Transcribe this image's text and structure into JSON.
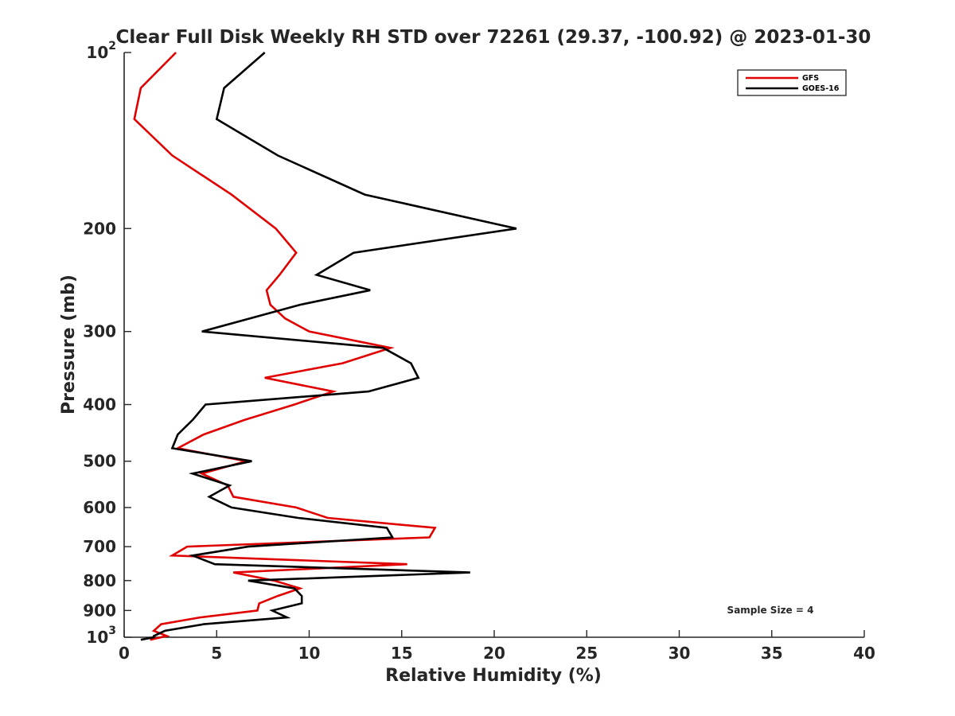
{
  "chart_data": {
    "type": "line",
    "title": "Clear Full Disk Weekly RH STD over 72261 (29.37, -100.92) @ 2023-01-30",
    "xlabel": "Relative Humidity (%)",
    "ylabel": "Pressure (mb)",
    "xlim": [
      0,
      40
    ],
    "ylim": [
      100,
      1000
    ],
    "y_scale": "log",
    "y_reversed": true,
    "xticks": [
      0,
      5,
      10,
      15,
      20,
      25,
      30,
      35,
      40
    ],
    "yticks": [
      {
        "value": 100,
        "base": "10",
        "exp": "2"
      },
      {
        "value": 200,
        "label": "200"
      },
      {
        "value": 300,
        "label": "300"
      },
      {
        "value": 400,
        "label": "400"
      },
      {
        "value": 500,
        "label": "500"
      },
      {
        "value": 600,
        "label": "600"
      },
      {
        "value": 700,
        "label": "700"
      },
      {
        "value": 800,
        "label": "800"
      },
      {
        "value": 900,
        "label": "900"
      },
      {
        "value": 1000,
        "base": "10",
        "exp": "3"
      }
    ],
    "grid": false,
    "legend_position": "top-right",
    "annotation": "Sample Size = 4",
    "series": [
      {
        "name": "GFS",
        "color": "#e00000",
        "points": [
          [
            2.8,
            100
          ],
          [
            0.9,
            115
          ],
          [
            0.55,
            130
          ],
          [
            2.6,
            150
          ],
          [
            5.8,
            175
          ],
          [
            8.2,
            200
          ],
          [
            9.3,
            220
          ],
          [
            8.4,
            240
          ],
          [
            7.7,
            255
          ],
          [
            7.9,
            270
          ],
          [
            8.7,
            285
          ],
          [
            10.0,
            300
          ],
          [
            14.4,
            320
          ],
          [
            11.8,
            340
          ],
          [
            7.6,
            360
          ],
          [
            11.3,
            380
          ],
          [
            9.2,
            400
          ],
          [
            6.5,
            425
          ],
          [
            4.3,
            450
          ],
          [
            2.9,
            475
          ],
          [
            6.6,
            500
          ],
          [
            4.2,
            525
          ],
          [
            5.6,
            550
          ],
          [
            5.9,
            575
          ],
          [
            9.3,
            600
          ],
          [
            11.0,
            625
          ],
          [
            16.8,
            650
          ],
          [
            16.5,
            675
          ],
          [
            3.4,
            700
          ],
          [
            2.6,
            725
          ],
          [
            15.3,
            750
          ],
          [
            5.9,
            775
          ],
          [
            8.1,
            800
          ],
          [
            9.5,
            825
          ],
          [
            8.3,
            850
          ],
          [
            7.3,
            875
          ],
          [
            7.2,
            900
          ],
          [
            4.1,
            925
          ],
          [
            2.0,
            950
          ],
          [
            1.6,
            975
          ],
          [
            2.3,
            995
          ],
          [
            1.4,
            1010
          ]
        ]
      },
      {
        "name": "GOES-16",
        "color": "#000000",
        "points": [
          [
            7.6,
            100
          ],
          [
            5.4,
            115
          ],
          [
            5.0,
            130
          ],
          [
            8.3,
            150
          ],
          [
            13.0,
            175
          ],
          [
            21.2,
            200
          ],
          [
            12.4,
            220
          ],
          [
            10.4,
            240
          ],
          [
            13.3,
            255
          ],
          [
            9.5,
            270
          ],
          [
            4.2,
            300
          ],
          [
            14.0,
            320
          ],
          [
            15.5,
            340
          ],
          [
            15.9,
            360
          ],
          [
            13.2,
            380
          ],
          [
            4.4,
            400
          ],
          [
            3.7,
            425
          ],
          [
            2.9,
            450
          ],
          [
            2.6,
            475
          ],
          [
            6.9,
            500
          ],
          [
            3.7,
            525
          ],
          [
            5.7,
            550
          ],
          [
            4.6,
            575
          ],
          [
            5.8,
            600
          ],
          [
            9.4,
            625
          ],
          [
            14.2,
            650
          ],
          [
            14.5,
            675
          ],
          [
            6.7,
            700
          ],
          [
            3.7,
            725
          ],
          [
            4.9,
            750
          ],
          [
            18.7,
            775
          ],
          [
            6.7,
            800
          ],
          [
            9.2,
            825
          ],
          [
            9.6,
            850
          ],
          [
            9.6,
            875
          ],
          [
            8.0,
            900
          ],
          [
            8.8,
            925
          ],
          [
            4.3,
            950
          ],
          [
            2.2,
            975
          ],
          [
            1.6,
            995
          ],
          [
            1.6,
            1000
          ],
          [
            0.9,
            1010
          ]
        ]
      }
    ]
  }
}
